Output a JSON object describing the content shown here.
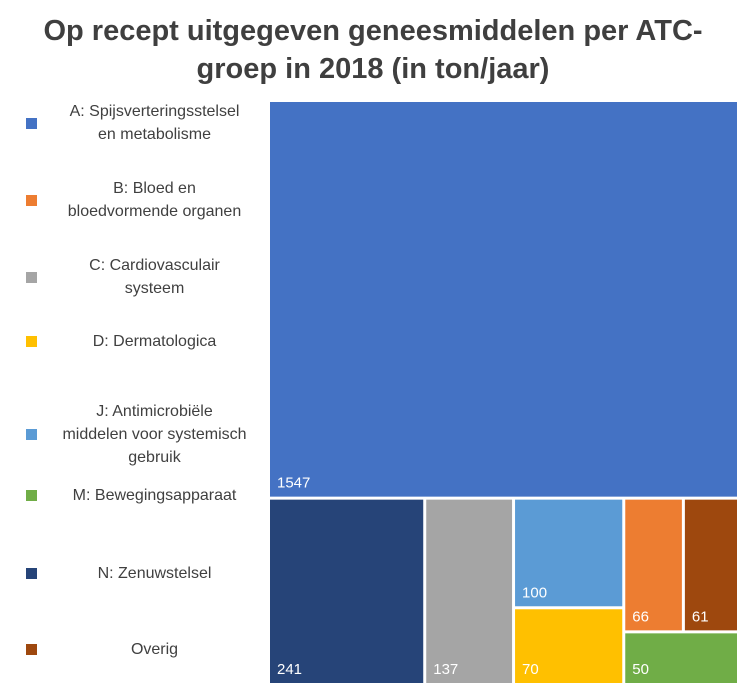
{
  "chart_data": {
    "type": "treemap",
    "title_lines": [
      "Op recept uitgegeven geneesmiddelen per ATC-",
      "groep in 2018 (in ton/jaar)"
    ],
    "series": [
      {
        "key": "A",
        "name": "A: Spijsverteringsstelsel en metabolisme",
        "legend_lines": [
          "A: Spijsverteringsstelsel",
          "en metabolisme"
        ],
        "value": 1547,
        "color": "#4472C4"
      },
      {
        "key": "B",
        "name": "B: Bloed en bloedvormende organen",
        "legend_lines": [
          "B: Bloed en",
          "bloedvormende organen"
        ],
        "value": 66,
        "color": "#ED7D31"
      },
      {
        "key": "C",
        "name": "C: Cardiovasculair systeem",
        "legend_lines": [
          "C: Cardiovasculair",
          "systeem"
        ],
        "value": 137,
        "color": "#A5A5A5"
      },
      {
        "key": "D",
        "name": "D: Dermatologica",
        "legend_lines": [
          "D: Dermatologica"
        ],
        "value": 70,
        "color": "#FFC000"
      },
      {
        "key": "J",
        "name": "J: Antimicrobiële middelen voor systemisch gebruik",
        "legend_lines": [
          "J: Antimicrobiële",
          "middelen voor systemisch",
          "gebruik"
        ],
        "value": 100,
        "color": "#5B9BD5"
      },
      {
        "key": "M",
        "name": "M: Bewegingsapparaat",
        "legend_lines": [
          "M: Bewegingsapparaat"
        ],
        "value": 50,
        "color": "#70AD47"
      },
      {
        "key": "N",
        "name": "N: Zenuwstelsel",
        "legend_lines": [
          "N: Zenuwstelsel"
        ],
        "value": 241,
        "color": "#264478"
      },
      {
        "key": "O",
        "name": "Overig",
        "legend_lines": [
          "Overig"
        ],
        "value": 61,
        "color": "#9E480E"
      }
    ],
    "legend_position": "left",
    "value_labels": "bottom-left"
  }
}
